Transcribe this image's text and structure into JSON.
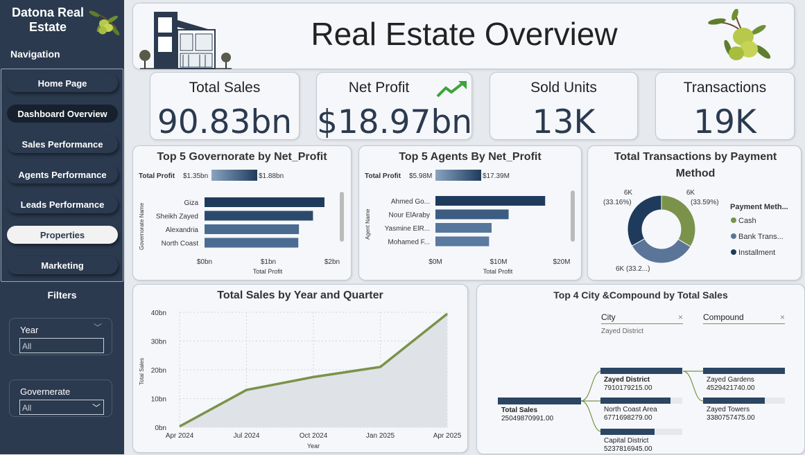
{
  "brand": {
    "name": "Datona Real Estate"
  },
  "nav": {
    "heading": "Navigation",
    "items": [
      {
        "label": "Home Page"
      },
      {
        "label": "Dashboard Overview"
      },
      {
        "label": "Sales Performance"
      },
      {
        "label": "Agents Performance"
      },
      {
        "label": "Leads Performance"
      },
      {
        "label": "Properties"
      },
      {
        "label": "Marketing"
      }
    ]
  },
  "filters": {
    "heading": "Filters",
    "year": {
      "label": "Year",
      "value": "All"
    },
    "governorate": {
      "label": "Governerate",
      "value": "All"
    }
  },
  "header": {
    "title": "Real Estate Overview"
  },
  "kpis": [
    {
      "title": "Total Sales",
      "value": "90.83bn"
    },
    {
      "title": "Net Profit",
      "value": "$18.97bn"
    },
    {
      "title": "Sold Units",
      "value": "13K"
    },
    {
      "title": "Transactions",
      "value": "19K"
    }
  ],
  "colors": {
    "navy": "#2b3a4f",
    "olive": "#7b924a",
    "slate": "#5a7598",
    "dark_navy": "#1f3b5c"
  },
  "chart_data": [
    {
      "type": "bar",
      "title": "Top 5 Governorate by Net_Profit",
      "legend": {
        "label": "Total Profit",
        "min": "$1.35bn",
        "max": "$1.88bn"
      },
      "categories": [
        "Giza",
        "Sheikh Zayed",
        "Alexandria",
        "North Coast"
      ],
      "values": [
        1.88,
        1.7,
        1.48,
        1.47
      ],
      "ylabel": "Governorate Name",
      "xlabel": "Total Profit",
      "xticks": [
        "$0bn",
        "$1bn",
        "$2bn"
      ],
      "xlim": [
        0,
        2
      ]
    },
    {
      "type": "bar",
      "title": "Top 5 Agents By Net_Profit",
      "legend": {
        "label": "Total Profit",
        "min": "$5.98M",
        "max": "$17.39M"
      },
      "categories": [
        "Ahmed Go...",
        "Nour ElAraby",
        "Yasmine ElR...",
        "Mohamed F..."
      ],
      "values": [
        17.39,
        11.6,
        8.9,
        8.5
      ],
      "ylabel": "Agent Name",
      "xlabel": "Total Profit",
      "xticks": [
        "$0M",
        "$10M",
        "$20M"
      ],
      "xlim": [
        0,
        20
      ]
    },
    {
      "type": "pie",
      "title": "Total Transactions by Payment Method",
      "legend_title": "Payment Meth...",
      "slices": [
        {
          "name": "Cash",
          "label": "6K",
          "pct": "(33.59%)",
          "value": 33.59,
          "color": "#7b924a"
        },
        {
          "name": "Bank Trans...",
          "label": "6K (33.2...)",
          "pct": "",
          "value": 33.25,
          "color": "#5a7598"
        },
        {
          "name": "Installment",
          "label": "6K",
          "pct": "(33.16%)",
          "value": 33.16,
          "color": "#1f3b5c"
        }
      ]
    },
    {
      "type": "area",
      "title": "Total Sales by Year and Quarter",
      "x": [
        "Apr 2024",
        "Jul 2024",
        "Oct 2024",
        "Jan 2025",
        "Apr 2025"
      ],
      "values": [
        0.3,
        13,
        17.5,
        21,
        39.5
      ],
      "ylabel": "Total Sales",
      "xlabel": "Year",
      "yticks": [
        "0bn",
        "10bn",
        "20bn",
        "30bn",
        "40bn"
      ],
      "ylim": [
        0,
        40
      ]
    }
  ],
  "tree": {
    "title": "Top 4 City &Compound by Total Sales",
    "col1": "City",
    "col1_sub": "Zayed District",
    "col2": "Compound",
    "close": "×",
    "root": {
      "label": "Total Sales",
      "value": "25049870991.00"
    },
    "cities": [
      {
        "label": "Zayed District",
        "value": "7910179215.00",
        "fill": 1.0
      },
      {
        "label": "North Coast Area",
        "value": "6771698279.00",
        "fill": 0.86
      },
      {
        "label": "Capital District",
        "value": "5237816945.00",
        "fill": 0.66
      }
    ],
    "compounds": [
      {
        "label": "Zayed Gardens",
        "value": "4529421740.00",
        "fill": 1.0
      },
      {
        "label": "Zayed Towers",
        "value": "3380757475.00",
        "fill": 0.75
      }
    ]
  }
}
